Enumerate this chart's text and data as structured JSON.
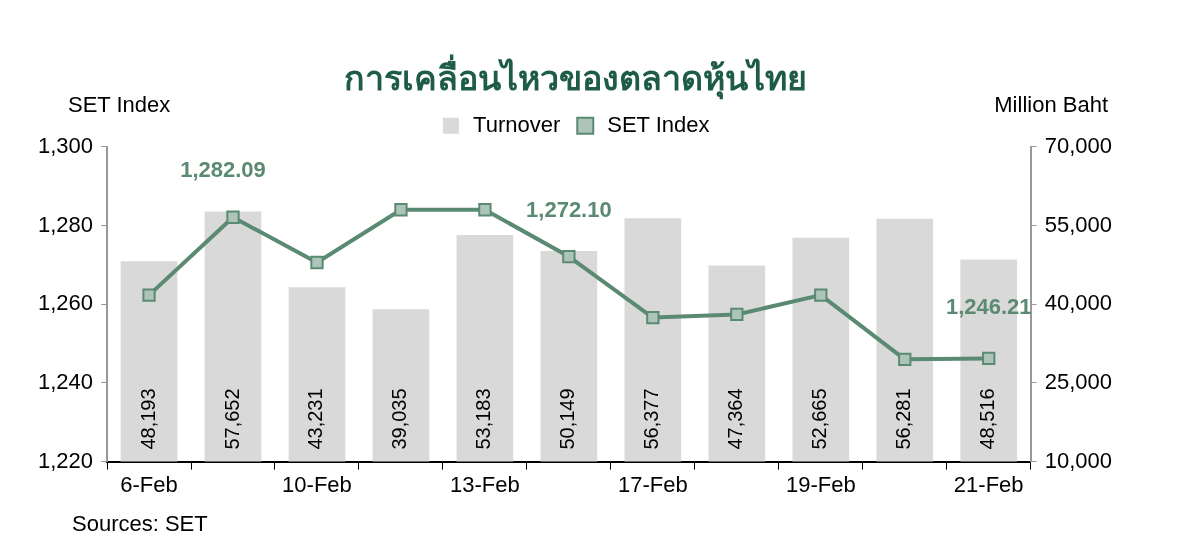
{
  "chart_data": {
    "type": "bar",
    "title": "การเคลื่อนไหวของตลาดหุ้นไทย",
    "ylabel": "SET Index",
    "y2label": "Million Baht",
    "categories": [
      "6-Feb",
      null,
      "10-Feb",
      null,
      "13-Feb",
      null,
      "17-Feb",
      null,
      "19-Feb",
      null,
      "21-Feb"
    ],
    "series": [
      {
        "name": "Turnover",
        "axis": "y2",
        "color": "#d9d9d9",
        "values": [
          48193,
          57652,
          43231,
          39035,
          53183,
          50149,
          56377,
          47364,
          52665,
          56281,
          48516
        ],
        "value_labels": [
          "48,193",
          "57,652",
          "43,231",
          "39,035",
          "53,183",
          "50,149",
          "56,377",
          "47,364",
          "52,665",
          "56,281",
          "48,516"
        ]
      },
      {
        "name": "SET Index",
        "type": "line",
        "axis": "y",
        "color": "#5b8a72",
        "marker": "square",
        "values": [
          1262.3,
          1282.09,
          1270.6,
          1284,
          1284,
          1272.1,
          1256.6,
          1257.4,
          1262.3,
          1246,
          1246.21
        ],
        "value_labels": [
          null,
          "1,282.09",
          null,
          null,
          null,
          "1,272.10",
          null,
          null,
          null,
          null,
          "1,246.21"
        ]
      }
    ],
    "ylim": [
      1220,
      1300
    ],
    "yticks": [
      {
        "value": 1220,
        "label": "1,220"
      },
      {
        "value": 1240,
        "label": "1,240"
      },
      {
        "value": 1260,
        "label": "1,260"
      },
      {
        "value": 1280,
        "label": "1,280"
      },
      {
        "value": 1300,
        "label": "1,300"
      }
    ],
    "y2lim": [
      10000,
      70000
    ],
    "y2ticks": [
      {
        "value": 10000,
        "label": "10,000"
      },
      {
        "value": 25000,
        "label": "25,000"
      },
      {
        "value": 40000,
        "label": "40,000"
      },
      {
        "value": 55000,
        "label": "55,000"
      },
      {
        "value": 70000,
        "label": "70,000"
      }
    ],
    "legend": "top",
    "annotations": [
      "Sources: SET"
    ]
  }
}
